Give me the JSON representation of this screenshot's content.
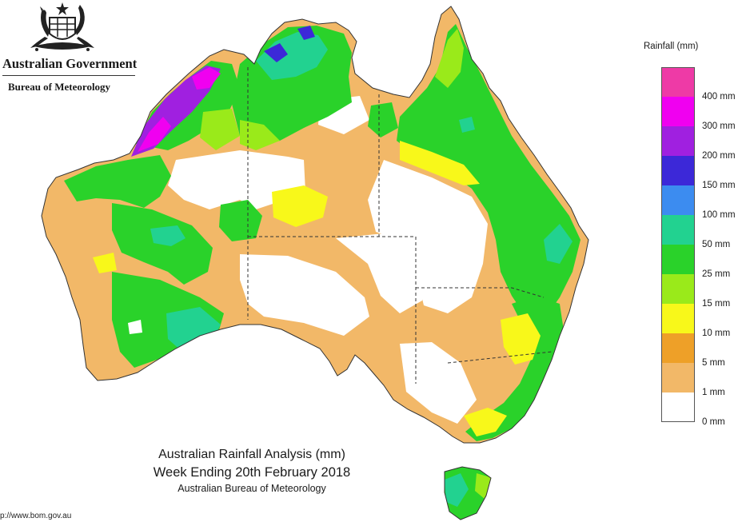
{
  "header": {
    "org_name": "Australian Government",
    "agency_name": "Bureau of Meteorology",
    "crest_icon": "coat-of-arms-icon"
  },
  "map_title": {
    "line1": "Australian Rainfall Analysis (mm)",
    "line2": "Week Ending 20th February 2018",
    "line3": "Australian Bureau of Meteorology"
  },
  "footer": {
    "url": "p://www.bom.gov.au"
  },
  "legend": {
    "title": "Rainfall (mm)",
    "bins": [
      {
        "label": "400 mm",
        "color": "#ee3aa6"
      },
      {
        "label": "300 mm",
        "color": "#f000f0"
      },
      {
        "label": "200 mm",
        "color": "#a020e0"
      },
      {
        "label": "150 mm",
        "color": "#3c28d8"
      },
      {
        "label": "100 mm",
        "color": "#3c8cf0"
      },
      {
        "label": "50 mm",
        "color": "#22d290"
      },
      {
        "label": "25 mm",
        "color": "#2ad22a"
      },
      {
        "label": "15 mm",
        "color": "#9aea1a"
      },
      {
        "label": "10 mm",
        "color": "#f8f81a"
      },
      {
        "label": "5 mm",
        "color": "#eea028"
      },
      {
        "label": "1 mm",
        "color": "#f2b868"
      },
      {
        "label": "0 mm",
        "color": "#ffffff"
      }
    ]
  }
}
